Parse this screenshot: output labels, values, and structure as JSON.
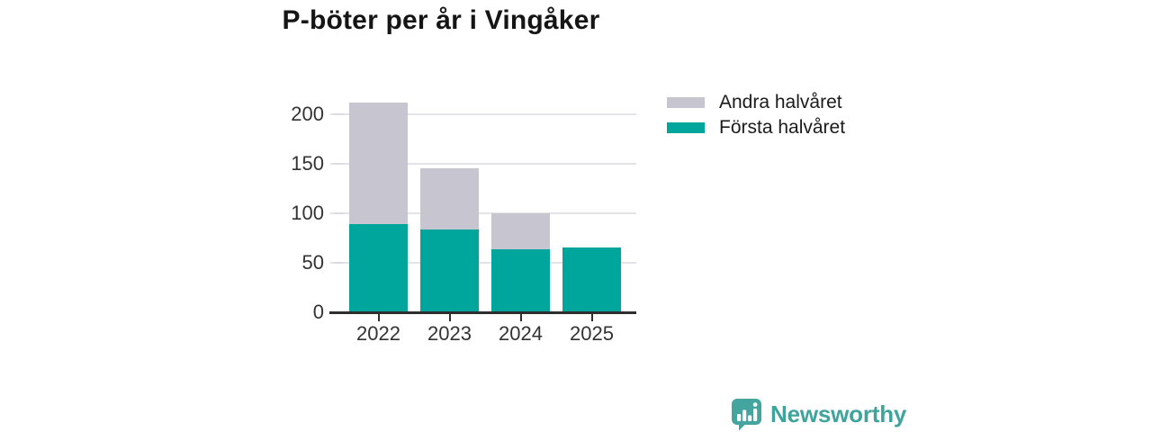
{
  "title": "P-böter per år i Vingåker",
  "colors": {
    "first_half": "#00a59c",
    "second_half": "#c7c5cf",
    "grid": "#e4e3e8",
    "axis": "#2e2e2e",
    "tick_text": "#333333",
    "title_text": "#151515",
    "brand": "#3fa49c"
  },
  "legend": {
    "items": [
      {
        "label": "Andra halvåret",
        "color_key": "second_half"
      },
      {
        "label": "Första halvåret",
        "color_key": "first_half"
      }
    ]
  },
  "footer": {
    "brand_name": "Newsworthy",
    "logo_icon": "speech-bubble-bar-chart-icon"
  },
  "chart_data": {
    "type": "bar",
    "stacked": true,
    "title": "P-böter per år i Vingåker",
    "categories": [
      "2022",
      "2023",
      "2024",
      "2025"
    ],
    "series": [
      {
        "name": "Första halvåret",
        "color_key": "first_half",
        "values": [
          89,
          84,
          64,
          65
        ]
      },
      {
        "name": "Andra halvåret",
        "color_key": "second_half",
        "values": [
          123,
          62,
          36,
          0
        ]
      }
    ],
    "xlabel": "",
    "ylabel": "",
    "yticks": [
      0,
      50,
      100,
      150,
      200
    ],
    "ylim": [
      0,
      220
    ],
    "grid": true,
    "legend_position": "top-right"
  }
}
